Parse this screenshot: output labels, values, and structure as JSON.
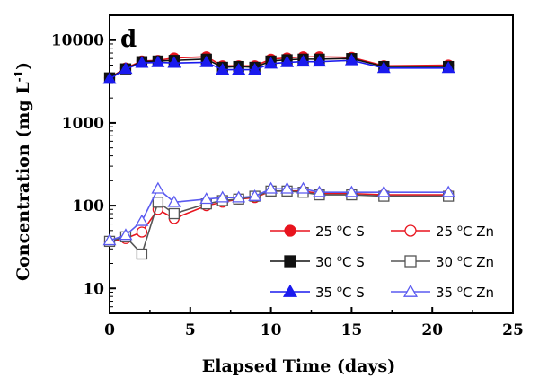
{
  "chart_data": {
    "type": "line",
    "panel_label": "d",
    "xlabel": "Elapsed Time (days)",
    "ylabel": "Concentration (mg L",
    "ylabel_sup": "-1",
    "ylabel_close": ")",
    "xlim": [
      0,
      25
    ],
    "ylim": [
      5,
      20000
    ],
    "yscale": "log",
    "xticks": [
      0,
      5,
      10,
      15,
      20,
      25
    ],
    "yticks": [
      10,
      100,
      1000,
      10000
    ],
    "ytick_labels": [
      "10",
      "100",
      "1000",
      "10000"
    ],
    "legend_placement": "lower-right",
    "grid": false,
    "x": [
      0,
      1,
      2,
      3,
      4,
      6,
      7,
      8,
      9,
      10,
      11,
      12,
      13,
      15,
      17,
      21
    ],
    "series": [
      {
        "name": "25 °C S",
        "label_prefix": "25 ",
        "label_suffix": "C S",
        "color": "#e8141e",
        "marker": "circle",
        "filled": true,
        "values": [
          3500,
          4600,
          5600,
          5700,
          6100,
          6300,
          4900,
          4900,
          4900,
          5900,
          6100,
          6300,
          6300,
          6200,
          4900,
          5000
        ]
      },
      {
        "name": "25 °C Zn",
        "label_prefix": "25 ",
        "label_suffix": "C Zn",
        "color": "#e8141e",
        "marker": "circle",
        "filled": false,
        "values": [
          37,
          40,
          48,
          90,
          70,
          100,
          110,
          120,
          125,
          150,
          150,
          150,
          140,
          140,
          135,
          135
        ]
      },
      {
        "name": "30 °C S",
        "label_prefix": "30 ",
        "label_suffix": "C S",
        "color": "#111111",
        "marker": "square",
        "filled": true,
        "values": [
          3500,
          4500,
          5500,
          5600,
          5700,
          5900,
          4700,
          4800,
          4700,
          5600,
          5800,
          5900,
          5900,
          6000,
          4800,
          4800
        ]
      },
      {
        "name": "30 °C Zn",
        "label_prefix": "30 ",
        "label_suffix": "C Zn",
        "color": "#555555",
        "marker": "square",
        "filled": false,
        "values": [
          37,
          42,
          26,
          110,
          80,
          105,
          115,
          120,
          130,
          150,
          150,
          145,
          135,
          135,
          130,
          130
        ]
      },
      {
        "name": "35 °C S",
        "label_prefix": "35 ",
        "label_suffix": "C S",
        "color": "#1a1aee",
        "marker": "triangle",
        "filled": true,
        "values": [
          3400,
          4500,
          5300,
          5400,
          5300,
          5400,
          4400,
          4400,
          4400,
          5200,
          5400,
          5500,
          5500,
          5700,
          4600,
          4600
        ]
      },
      {
        "name": "35 °C Zn",
        "label_prefix": "35 ",
        "label_suffix": "C Zn",
        "color": "#5a5af0",
        "marker": "triangle",
        "filled": false,
        "values": [
          38,
          44,
          65,
          160,
          110,
          120,
          125,
          125,
          130,
          160,
          160,
          160,
          145,
          145,
          145,
          145
        ]
      }
    ]
  }
}
